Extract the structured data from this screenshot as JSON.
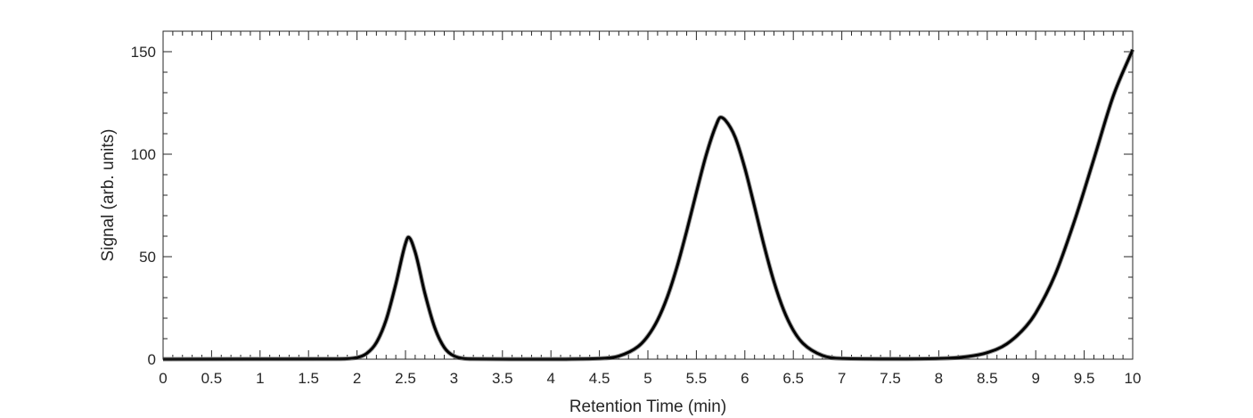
{
  "chart_data": {
    "type": "line",
    "title": "",
    "xlabel": "Retention Time (min)",
    "ylabel": "Signal (arb. units)",
    "xlim": [
      0,
      10
    ],
    "ylim": [
      0,
      160
    ],
    "grid": false,
    "legend": "none",
    "x_ticks": [
      0,
      0.5,
      1,
      1.5,
      2,
      2.5,
      3,
      3.5,
      4,
      4.5,
      5,
      5.5,
      6,
      6.5,
      7,
      7.5,
      8,
      8.5,
      9,
      9.5,
      10
    ],
    "x_tick_labels": [
      "0",
      "0.5",
      "1",
      "1.5",
      "2",
      "2.5",
      "3",
      "3.5",
      "4",
      "4.5",
      "5",
      "5.5",
      "6",
      "6.5",
      "7",
      "7.5",
      "8",
      "8.5",
      "9",
      "9.5",
      "10"
    ],
    "y_ticks": [
      0,
      50,
      100,
      150
    ],
    "y_tick_labels": [
      "0",
      "50",
      "100",
      "150"
    ],
    "series": [
      {
        "color": "#000000",
        "x": [
          0,
          1.8,
          2.0,
          2.1,
          2.2,
          2.3,
          2.4,
          2.5,
          2.53,
          2.6,
          2.7,
          2.8,
          2.9,
          3.0,
          3.2,
          4.0,
          4.5,
          4.7,
          4.9,
          5.0,
          5.1,
          5.2,
          5.3,
          5.4,
          5.5,
          5.6,
          5.7,
          5.75,
          5.8,
          5.9,
          6.0,
          6.1,
          6.2,
          6.3,
          6.4,
          6.5,
          6.6,
          6.8,
          7.0,
          7.5,
          8.0,
          8.3,
          8.5,
          8.7,
          8.9,
          9.0,
          9.2,
          9.4,
          9.6,
          9.8,
          10.0
        ],
        "y": [
          0,
          0.1,
          0.8,
          2.8,
          8.1,
          19.1,
          36.6,
          56.4,
          59.5,
          52.2,
          32.1,
          15.6,
          5.7,
          1.6,
          0.1,
          0,
          0.3,
          1.5,
          6.2,
          11.3,
          19.1,
          30.3,
          45.0,
          62.5,
          81.3,
          99.4,
          113.7,
          118.0,
          116.5,
          108.3,
          93.2,
          74.4,
          55.1,
          37.8,
          24.0,
          14.1,
          7.7,
          1.8,
          0.3,
          0.1,
          0.3,
          1.3,
          3.2,
          7.4,
          16.0,
          22.5,
          41.2,
          67.5,
          97.7,
          128.4,
          151.0
        ]
      }
    ]
  }
}
